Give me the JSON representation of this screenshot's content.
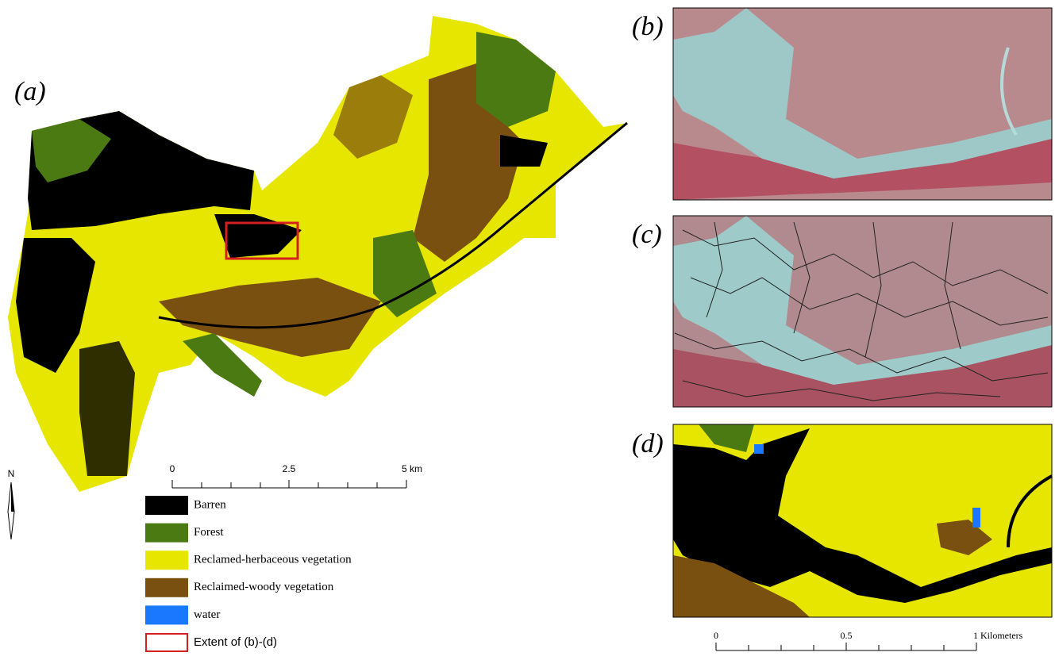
{
  "panels": {
    "a": "(a)",
    "b": "(b)",
    "c": "(c)",
    "d": "(d)"
  },
  "north_arrow": "N",
  "scale_bar_a": [
    "0",
    "2.5",
    "5 km"
  ],
  "scale_bar_d": [
    "0",
    "0.5",
    "1 Kilometers"
  ],
  "legend": [
    {
      "label": "Barren",
      "color": "#000000"
    },
    {
      "label": "Forest",
      "color": "#4c7a12"
    },
    {
      "label": "Reclamed-herbaceous vegetation",
      "color": "#e6e600"
    },
    {
      "label": "Reclaimed-woody vegetation",
      "color": "#7a5010"
    },
    {
      "label": "water",
      "color": "#1a78ff"
    },
    {
      "label": "Extent of (b)-(d)",
      "color": "#d62020",
      "outline": true
    }
  ]
}
